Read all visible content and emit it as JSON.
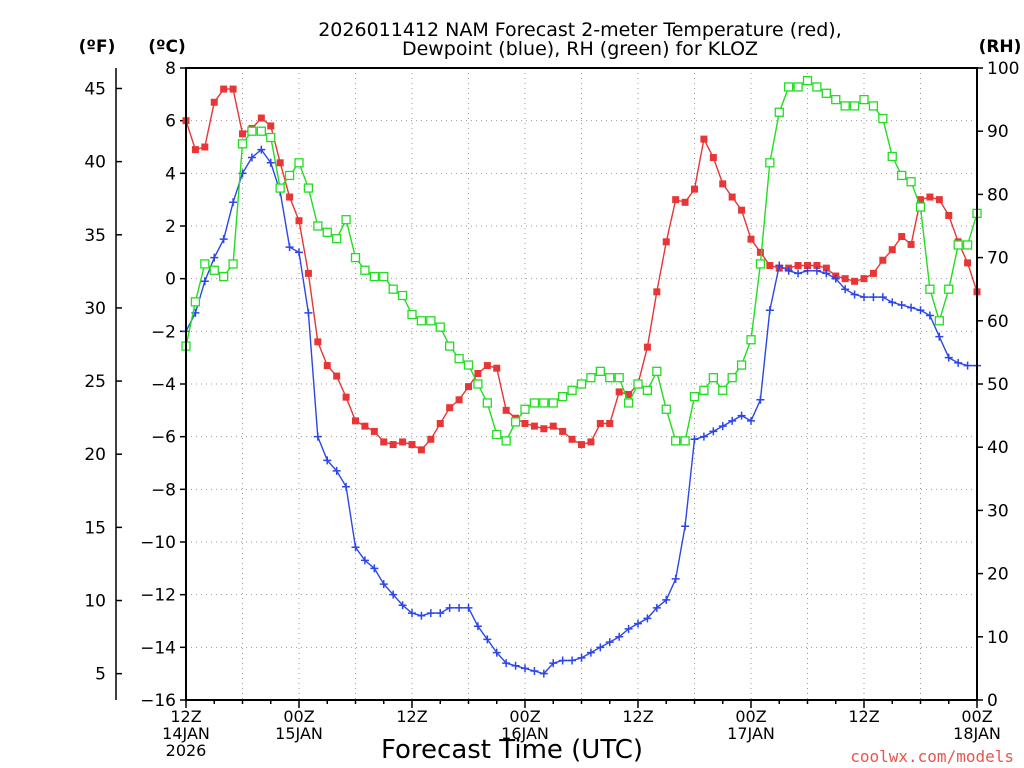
{
  "chart_data": {
    "type": "line",
    "title": [
      "2026011412 NAM Forecast 2-meter Temperature (red),",
      "Dewpoint (blue), RH (green) for KLOZ"
    ],
    "xlabel": "Forecast Time (UTC)",
    "units": {
      "fahrenheit": "(ºF)",
      "celsius": "(ºC)",
      "rh": "(RH)"
    },
    "ylim_c": [
      -16,
      8
    ],
    "ylim_rh": [
      0,
      100
    ],
    "yticks_c": [
      "8",
      "6",
      "4",
      "2",
      "0",
      "−2",
      "−4",
      "−6",
      "−8",
      "−10",
      "−12",
      "−14",
      "−16"
    ],
    "yticks_f": [
      "45",
      "40",
      "35",
      "30",
      "25",
      "20",
      "15",
      "10",
      "5"
    ],
    "yticks_rh": [
      "100",
      "90",
      "80",
      "70",
      "60",
      "50",
      "40",
      "30",
      "20",
      "10",
      "0"
    ],
    "xticks": [
      {
        "hour": 0,
        "lines": [
          "12Z",
          "14JAN",
          "2026"
        ]
      },
      {
        "hour": 12,
        "lines": [
          "00Z",
          "15JAN"
        ]
      },
      {
        "hour": 24,
        "lines": [
          "12Z"
        ]
      },
      {
        "hour": 36,
        "lines": [
          "00Z",
          "16JAN"
        ]
      },
      {
        "hour": 48,
        "lines": [
          "12Z"
        ]
      },
      {
        "hour": 60,
        "lines": [
          "00Z",
          "17JAN"
        ]
      },
      {
        "hour": 72,
        "lines": [
          "12Z"
        ]
      },
      {
        "hour": 84,
        "lines": [
          "00Z",
          "18JAN"
        ]
      }
    ],
    "x_hours": [
      0,
      1,
      2,
      3,
      4,
      5,
      6,
      7,
      8,
      9,
      10,
      11,
      12,
      13,
      14,
      15,
      16,
      17,
      18,
      19,
      20,
      21,
      22,
      23,
      24,
      25,
      26,
      27,
      28,
      29,
      30,
      31,
      32,
      33,
      34,
      35,
      36,
      37,
      38,
      39,
      40,
      41,
      42,
      43,
      44,
      45,
      46,
      47,
      48,
      49,
      50,
      51,
      52,
      53,
      54,
      55,
      56,
      57,
      58,
      59,
      60,
      61,
      62,
      63,
      64,
      65,
      66,
      67,
      68,
      69,
      70,
      71,
      72,
      73,
      74,
      75,
      76,
      77,
      78,
      79,
      80,
      81,
      82,
      83,
      84
    ],
    "series": [
      {
        "name": "Temperature",
        "unit": "C",
        "color": "#e83535",
        "marker": "filled-square",
        "values": [
          6.0,
          4.9,
          5.0,
          6.7,
          7.2,
          7.2,
          5.5,
          5.7,
          6.1,
          5.8,
          4.4,
          3.1,
          2.2,
          0.2,
          -2.4,
          -3.3,
          -3.7,
          -4.5,
          -5.4,
          -5.6,
          -5.8,
          -6.2,
          -6.3,
          -6.2,
          -6.3,
          -6.5,
          -6.1,
          -5.5,
          -4.9,
          -4.6,
          -4.1,
          -3.6,
          -3.3,
          -3.4,
          -5.0,
          -5.3,
          -5.5,
          -5.6,
          -5.7,
          -5.6,
          -5.8,
          -6.1,
          -6.3,
          -6.2,
          -5.5,
          -5.5,
          -4.3,
          -4.4,
          -4.0,
          -2.6,
          -0.5,
          1.4,
          3.0,
          2.9,
          3.4,
          5.3,
          4.6,
          3.6,
          3.1,
          2.6,
          1.5,
          1.0,
          0.5,
          0.4,
          0.4,
          0.5,
          0.5,
          0.5,
          0.4,
          0.1,
          0.0,
          -0.1,
          0.0,
          0.2,
          0.7,
          1.1,
          1.6,
          1.3,
          3.0,
          3.1,
          3.0,
          2.4,
          1.4,
          0.6,
          -0.5
        ]
      },
      {
        "name": "Dewpoint",
        "unit": "C",
        "color": "#2c46e8",
        "marker": "plus",
        "values": [
          -2.0,
          -1.3,
          -0.1,
          0.8,
          1.5,
          2.9,
          4.0,
          4.6,
          4.9,
          4.4,
          3.3,
          1.2,
          1.0,
          -1.3,
          -6.0,
          -6.9,
          -7.3,
          -7.9,
          -10.2,
          -10.7,
          -11.0,
          -11.6,
          -12.0,
          -12.4,
          -12.7,
          -12.8,
          -12.7,
          -12.7,
          -12.5,
          -12.5,
          -12.5,
          -13.2,
          -13.7,
          -14.2,
          -14.6,
          -14.7,
          -14.8,
          -14.9,
          -15.0,
          -14.6,
          -14.5,
          -14.5,
          -14.4,
          -14.2,
          -14.0,
          -13.8,
          -13.6,
          -13.3,
          -13.1,
          -12.9,
          -12.5,
          -12.2,
          -11.4,
          -9.4,
          -6.1,
          -6.0,
          -5.8,
          -5.6,
          -5.4,
          -5.2,
          -5.4,
          -4.6,
          -1.2,
          0.5,
          0.3,
          0.2,
          0.3,
          0.3,
          0.2,
          0.0,
          -0.4,
          -0.6,
          -0.7,
          -0.7,
          -0.7,
          -0.9,
          -1.0,
          -1.1,
          -1.2,
          -1.4,
          -2.2,
          -3.0,
          -3.2,
          -3.3,
          -3.3
        ]
      },
      {
        "name": "RH",
        "unit": "%",
        "color": "#22dd22",
        "marker": "open-square",
        "values": [
          56,
          63,
          69,
          68,
          67,
          69,
          88,
          90,
          90,
          89,
          81,
          83,
          85,
          81,
          75,
          74,
          73,
          76,
          70,
          68,
          67,
          67,
          65,
          64,
          61,
          60,
          60,
          59,
          56,
          54,
          53,
          50,
          47,
          42,
          41,
          44,
          46,
          47,
          47,
          47,
          48,
          49,
          50,
          51,
          52,
          51,
          51,
          47,
          50,
          49,
          52,
          46,
          41,
          41,
          48,
          49,
          51,
          49,
          51,
          53,
          57,
          69,
          85,
          93,
          97,
          97,
          98,
          97,
          96,
          95,
          94,
          94,
          95,
          94,
          92,
          86,
          83,
          82,
          78,
          65,
          60,
          65,
          72,
          72,
          77
        ]
      }
    ],
    "grid": true,
    "legend": "none",
    "credit": "coolwx.com/models"
  }
}
